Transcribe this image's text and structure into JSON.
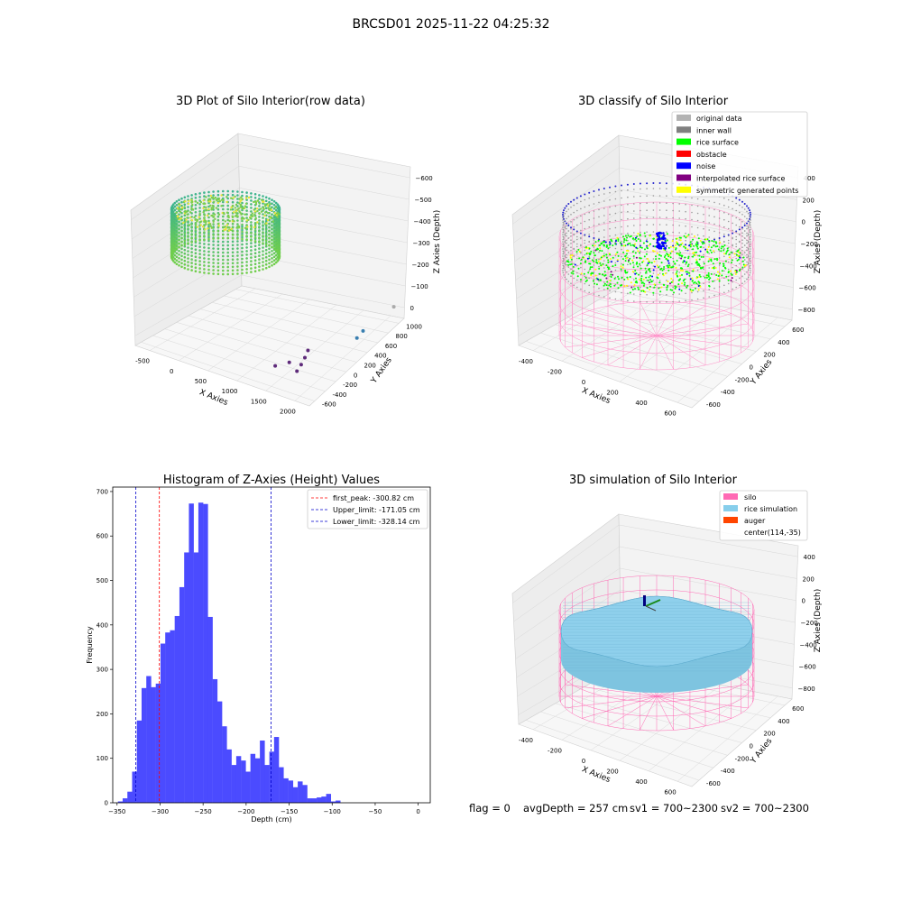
{
  "suptitle": "BRCSD01 2025-11-22 04:25:32",
  "footer": {
    "flag": "flag = 0",
    "avg": "avgDepth = 257 cm",
    "sv1": "sv1 = 700~2300",
    "sv2": "sv2 = 700~2300"
  },
  "chart_data": [
    {
      "type": "scatter",
      "panel": "raw",
      "title": "3D Plot of Silo Interior(row data)",
      "xlabel": "X Axies",
      "ylabel": "Y Axies",
      "zlabel": "Z Axies (Depth)",
      "x_ticks": [
        "-500",
        "0",
        "500",
        "1000",
        "1500",
        "2000"
      ],
      "y_ticks": [
        "-600",
        "-400",
        "-200",
        "0",
        "200",
        "400",
        "600",
        "800",
        "1000"
      ],
      "z_ticks": [
        "0",
        "−100",
        "−200",
        "−300",
        "−400",
        "−500",
        "−600"
      ],
      "xlim": [
        -600,
        2100
      ],
      "ylim": [
        -700,
        1050
      ],
      "zlim": [
        -700,
        40
      ],
      "outliers": [
        {
          "x": 1900,
          "y": 900,
          "z": -480,
          "color": "#aaaaaa"
        },
        {
          "x": 1800,
          "y": 500,
          "z": -550,
          "color": "#3a7fb0"
        },
        {
          "x": 1800,
          "y": 400,
          "z": -570,
          "color": "#3a7fb0"
        },
        {
          "x": 1700,
          "y": -300,
          "z": -520,
          "color": "#5e2a7a"
        },
        {
          "x": 1700,
          "y": -350,
          "z": -550,
          "color": "#5e2a7a"
        },
        {
          "x": 1690,
          "y": -400,
          "z": -580,
          "color": "#5e2a7a"
        },
        {
          "x": 1600,
          "y": -500,
          "z": -560,
          "color": "#5e2a7a"
        },
        {
          "x": 1700,
          "y": -480,
          "z": -600,
          "color": "#5e2a7a"
        },
        {
          "x": 1400,
          "y": -520,
          "z": -600,
          "color": "#5e2a7a"
        }
      ]
    },
    {
      "type": "scatter",
      "panel": "classify",
      "title": "3D classify of Silo Interior",
      "xlabel": "X Axies",
      "ylabel": "Y Axies",
      "zlabel": "Z Axies (Depth)",
      "x_ticks": [
        "-400",
        "-200",
        "0",
        "200",
        "400",
        "600"
      ],
      "y_ticks": [
        "-600",
        "-400",
        "-200",
        "0",
        "200",
        "400",
        "600"
      ],
      "z_ticks": [
        "−800",
        "−600",
        "−400",
        "−200",
        "0",
        "200",
        "400"
      ],
      "legend_position": "upper right",
      "legend": [
        {
          "label": "original data",
          "color": "#b3b3b3"
        },
        {
          "label": "inner wall",
          "color": "#808080"
        },
        {
          "label": "rice surface",
          "color": "#00ff00"
        },
        {
          "label": "obstacle",
          "color": "#ff0000"
        },
        {
          "label": "noise",
          "color": "#0000ff"
        },
        {
          "label": "interpolated rice surface",
          "color": "#800080"
        },
        {
          "label": "symmetric generated points",
          "color": "#ffff00"
        }
      ]
    },
    {
      "type": "bar",
      "panel": "histogram",
      "title": "Histogram of Z-Axies (Height) Values",
      "xlabel": "Depth (cm)",
      "ylabel": "Frequency",
      "xlim": [
        -355,
        14
      ],
      "ylim": [
        0,
        710
      ],
      "x_ticks": [
        -350,
        -300,
        -250,
        -200,
        -150,
        -100,
        -50,
        0
      ],
      "y_ticks": [
        0,
        100,
        200,
        300,
        400,
        500,
        600,
        700
      ],
      "bin_start": -349,
      "bin_width": 5.5,
      "values": [
        3,
        10,
        25,
        70,
        185,
        258,
        285,
        260,
        268,
        358,
        383,
        388,
        420,
        485,
        563,
        673,
        563,
        675,
        672,
        418,
        278,
        228,
        172,
        120,
        85,
        105,
        95,
        70,
        110,
        100,
        140,
        85,
        115,
        148,
        80,
        55,
        50,
        35,
        48,
        40,
        10,
        10,
        12,
        14,
        20,
        3,
        5
      ],
      "bar_color": "#4b4bff",
      "lines": [
        {
          "label": "first_peak: -300.82 cm",
          "x": -300.82,
          "color": "#ff0000"
        },
        {
          "label": "Upper_limit: -171.05 cm",
          "x": -171.05,
          "color": "#0000cc"
        },
        {
          "label": "Lower_limit: -328.14 cm",
          "x": -328.14,
          "color": "#0000cc"
        }
      ],
      "legend_position": "upper right"
    },
    {
      "type": "scatter",
      "panel": "simulation",
      "title": "3D simulation of Silo Interior",
      "xlabel": "X Axies",
      "ylabel": "Y Axies",
      "zlabel": "Z Axies (Depth)",
      "x_ticks": [
        "-400",
        "-200",
        "0",
        "200",
        "400",
        "600"
      ],
      "y_ticks": [
        "-600",
        "-400",
        "-200",
        "0",
        "200",
        "400",
        "600"
      ],
      "z_ticks": [
        "−800",
        "−600",
        "−400",
        "−200",
        "0",
        "200",
        "400"
      ],
      "legend_position": "upper right",
      "legend": [
        {
          "label": "silo",
          "color": "#ff69b4"
        },
        {
          "label": "rice simulation",
          "color": "#87ceeb"
        },
        {
          "label": "auger",
          "color": "#ff4500"
        },
        {
          "label": "center(114,-35)",
          "color": ""
        }
      ]
    }
  ]
}
